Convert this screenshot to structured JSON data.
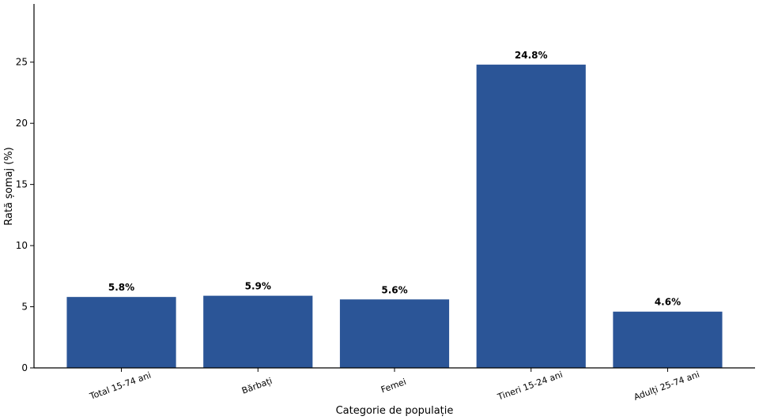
{
  "chart_data": {
    "type": "bar",
    "categories": [
      "Total 15-74 ani",
      "Bărbați",
      "Femei",
      "Tineri 15-24 ani",
      "Adulți 25-74 ani"
    ],
    "values": [
      5.8,
      5.9,
      5.6,
      24.8,
      4.6
    ],
    "value_labels": [
      "5.8%",
      "5.9%",
      "5.6%",
      "24.8%",
      "4.6%"
    ],
    "color": "#2b5597",
    "ylim": [
      0,
      29.76
    ],
    "yticks": [
      0,
      5,
      10,
      15,
      20,
      25
    ],
    "x_label": "Categorie de populație",
    "y_label": "Rată șomaj (%)",
    "grid": false
  }
}
